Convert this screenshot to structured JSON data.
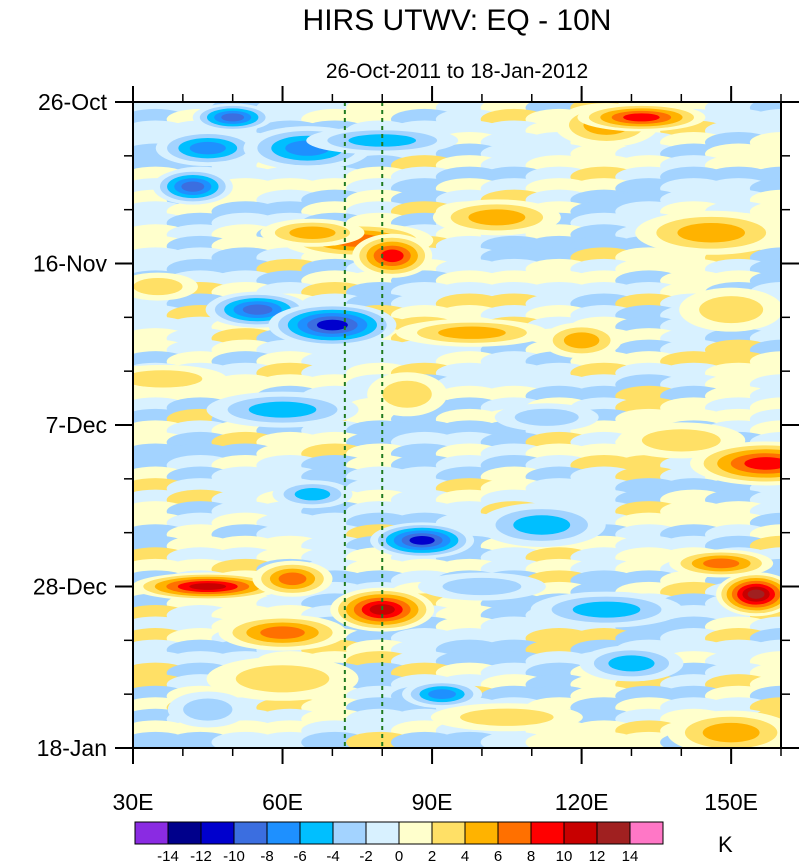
{
  "chart_data": {
    "type": "heatmap",
    "title": "HIRS UTWV: EQ - 10N",
    "subtitle": "26-Oct-2011 to 18-Jan-2012",
    "x_range": [
      30,
      160
    ],
    "x_ticks": [
      {
        "value": 30,
        "label": "30E"
      },
      {
        "value": 60,
        "label": "60E"
      },
      {
        "value": 90,
        "label": "90E"
      },
      {
        "value": 120,
        "label": "120E"
      },
      {
        "value": 150,
        "label": "150E"
      }
    ],
    "y_range_days": [
      0,
      84
    ],
    "y_ticks": [
      {
        "day": 0,
        "label": "26-Oct"
      },
      {
        "day": 21,
        "label": "16-Nov"
      },
      {
        "day": 42,
        "label": "7-Dec"
      },
      {
        "day": 63,
        "label": "28-Dec"
      },
      {
        "day": 84,
        "label": "18-Jan"
      }
    ],
    "y_minor_tick_step_days": 7,
    "reference_lines_lon": [
      72.5,
      80
    ],
    "colorbar": {
      "levels": [
        -14,
        -12,
        -10,
        -8,
        -6,
        -4,
        -2,
        0,
        2,
        4,
        6,
        8,
        10,
        12,
        14
      ],
      "level_labels": [
        "-14",
        "-12",
        "-10",
        "-8",
        "-6",
        "-4",
        "-2",
        "0",
        "2",
        "4",
        "6",
        "8",
        "10",
        "12",
        "14"
      ],
      "colors": [
        "#8a2be2",
        "#00008b",
        "#0000cd",
        "#3b6ee0",
        "#1e90ff",
        "#00bfff",
        "#a3d3ff",
        "#d8f1ff",
        "#ffffcc",
        "#ffe066",
        "#ffb300",
        "#ff7000",
        "#ff0000",
        "#c80000",
        "#a02020",
        "#ff77c6"
      ],
      "unit": "K"
    },
    "features": [
      {
        "lon": 50,
        "day": 2,
        "value": -10
      },
      {
        "lon": 45,
        "day": 6,
        "value": -8
      },
      {
        "lon": 65,
        "day": 6,
        "value": -8
      },
      {
        "lon": 80,
        "day": 5,
        "value": -6
      },
      {
        "lon": 42,
        "day": 11,
        "value": -10
      },
      {
        "lon": 125,
        "day": 3,
        "value": 6
      },
      {
        "lon": 132,
        "day": 2,
        "value": 10
      },
      {
        "lon": 75,
        "day": 18,
        "value": 8
      },
      {
        "lon": 82,
        "day": 20,
        "value": 10
      },
      {
        "lon": 66,
        "day": 17,
        "value": 6
      },
      {
        "lon": 103,
        "day": 15,
        "value": 6
      },
      {
        "lon": 146,
        "day": 17,
        "value": 6
      },
      {
        "lon": 35,
        "day": 24,
        "value": 4
      },
      {
        "lon": 55,
        "day": 27,
        "value": -10
      },
      {
        "lon": 70,
        "day": 29,
        "value": -12
      },
      {
        "lon": 98,
        "day": 30,
        "value": 6
      },
      {
        "lon": 120,
        "day": 31,
        "value": 5
      },
      {
        "lon": 150,
        "day": 27,
        "value": 4
      },
      {
        "lon": 36,
        "day": 36,
        "value": 4
      },
      {
        "lon": 60,
        "day": 40,
        "value": -6
      },
      {
        "lon": 85,
        "day": 38,
        "value": 4
      },
      {
        "lon": 113,
        "day": 41,
        "value": -4
      },
      {
        "lon": 140,
        "day": 44,
        "value": 4
      },
      {
        "lon": 157,
        "day": 47,
        "value": 10
      },
      {
        "lon": 66,
        "day": 51,
        "value": -6
      },
      {
        "lon": 88,
        "day": 57,
        "value": -12
      },
      {
        "lon": 112,
        "day": 55,
        "value": -6
      },
      {
        "lon": 45,
        "day": 63,
        "value": 12
      },
      {
        "lon": 62,
        "day": 62,
        "value": 8
      },
      {
        "lon": 80,
        "day": 66,
        "value": 12
      },
      {
        "lon": 100,
        "day": 63,
        "value": -4
      },
      {
        "lon": 125,
        "day": 66,
        "value": -6
      },
      {
        "lon": 155,
        "day": 64,
        "value": 14
      },
      {
        "lon": 148,
        "day": 60,
        "value": 8
      },
      {
        "lon": 60,
        "day": 69,
        "value": 8
      },
      {
        "lon": 60,
        "day": 75,
        "value": 4
      },
      {
        "lon": 92,
        "day": 77,
        "value": -8
      },
      {
        "lon": 130,
        "day": 73,
        "value": -6
      },
      {
        "lon": 150,
        "day": 82,
        "value": 6
      },
      {
        "lon": 105,
        "day": 80,
        "value": 4
      },
      {
        "lon": 45,
        "day": 79,
        "value": -4
      }
    ]
  }
}
